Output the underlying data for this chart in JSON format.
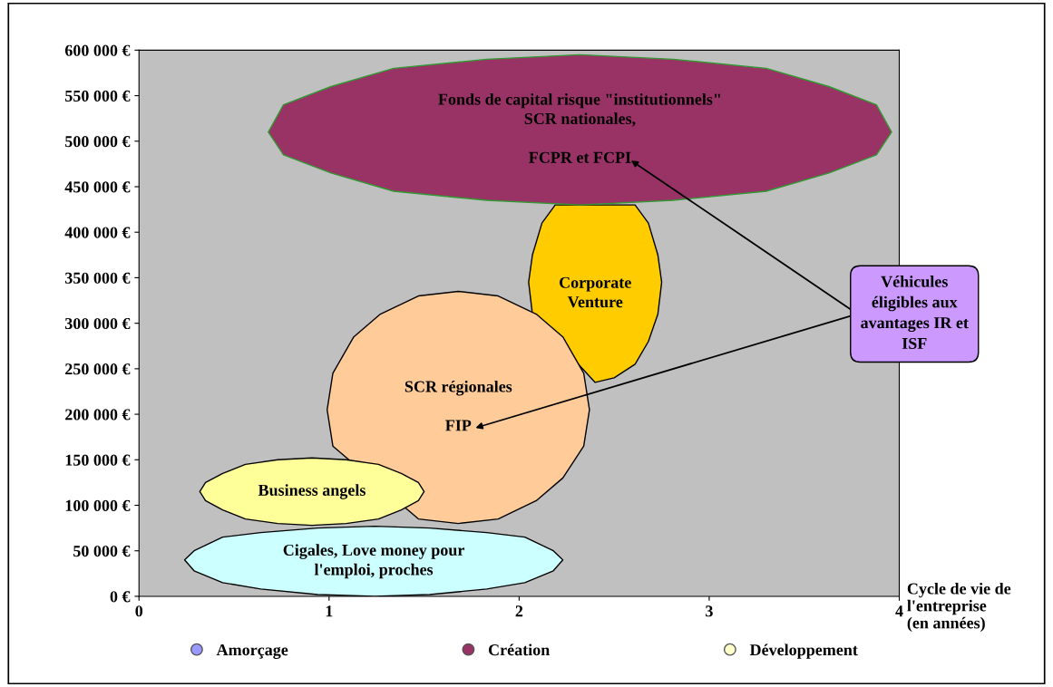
{
  "chart_data": {
    "type": "area",
    "xlabel": "Cycle de vie de\nl'entreprise\n(en années)",
    "xlim": [
      0,
      4
    ],
    "xticks": [
      0,
      1,
      2,
      3,
      4
    ],
    "ylim": [
      0,
      600000
    ],
    "yticks": [
      {
        "value": 0,
        "label": "0 €"
      },
      {
        "value": 50000,
        "label": "50 000 €"
      },
      {
        "value": 100000,
        "label": "100 000 €"
      },
      {
        "value": 150000,
        "label": "150 000 €"
      },
      {
        "value": 200000,
        "label": "200 000 €"
      },
      {
        "value": 250000,
        "label": "250 000 €"
      },
      {
        "value": 300000,
        "label": "300 000 €"
      },
      {
        "value": 350000,
        "label": "350 000 €"
      },
      {
        "value": 400000,
        "label": "400 000 €"
      },
      {
        "value": 450000,
        "label": "450 000 €"
      },
      {
        "value": 500000,
        "label": "500 000 €"
      },
      {
        "value": 550000,
        "label": "550 000 €"
      },
      {
        "value": 600000,
        "label": "600 000 €"
      }
    ],
    "grid": false,
    "legend": "bottom",
    "series": [
      {
        "name": "Corporate\nVenture",
        "color": "#ffcc00",
        "x": [
          2.05,
          2.07,
          2.12,
          2.19,
          2.3,
          2.4,
          2.5,
          2.61,
          2.68,
          2.73,
          2.75,
          2.73,
          2.68,
          2.61,
          2.5,
          2.4,
          2.3,
          2.19,
          2.12,
          2.07
        ],
        "values": [
          345000,
          375000,
          410000,
          430000,
          null,
          null,
          null,
          430000,
          410000,
          375000,
          345000,
          310000,
          280000,
          255000,
          240000,
          235000,
          null,
          null,
          null,
          310000
        ]
      },
      {
        "name": "SCR régionales\n\nFIP",
        "color": "#ffcc99",
        "x": [
          0.99,
          1.02,
          1.13,
          1.27,
          1.47,
          1.68,
          1.89,
          2.09,
          2.23,
          2.34,
          2.37,
          2.34,
          2.23,
          2.09,
          1.89,
          1.68,
          1.47,
          1.27,
          1.13,
          1.02
        ],
        "values": [
          205000,
          245000,
          285000,
          310000,
          330000,
          335000,
          330000,
          310000,
          285000,
          245000,
          205000,
          165000,
          130000,
          105000,
          85000,
          80000,
          85000,
          null,
          null,
          165000
        ]
      },
      {
        "name": "Business angels",
        "color": "#ffff99",
        "x": [
          0.32,
          0.35,
          0.44,
          0.56,
          0.73,
          0.91,
          1.09,
          1.26,
          1.38,
          1.47,
          1.5,
          1.47,
          1.38,
          1.26,
          1.09,
          0.91,
          0.73,
          0.56,
          0.44,
          0.35
        ],
        "values": [
          115000,
          125000,
          135000,
          145000,
          150000,
          152000,
          150000,
          145000,
          135000,
          125000,
          115000,
          105000,
          95000,
          85000,
          80000,
          78000,
          80000,
          85000,
          95000,
          105000
        ]
      },
      {
        "name": "Cigales, Love money pour\nl'emploi, proches",
        "color": "#ccffff",
        "x": [
          0.24,
          0.29,
          0.44,
          0.64,
          0.94,
          1.24,
          1.53,
          1.83,
          2.03,
          2.18,
          2.23,
          2.18,
          2.03,
          1.83,
          1.53,
          1.24,
          0.94,
          0.64,
          0.44,
          0.29
        ],
        "values": [
          40000,
          50000,
          65000,
          70000,
          75000,
          77000,
          75000,
          70000,
          65000,
          50000,
          40000,
          28000,
          15000,
          8000,
          2000,
          0,
          2000,
          8000,
          15000,
          28000
        ]
      },
      {
        "name": "Fonds de capital risque \"institutionnels\"\nSCR nationales,\n\nFCPR et FCPI",
        "color": "#993366",
        "x": [
          0.68,
          0.76,
          1.01,
          1.34,
          1.83,
          2.32,
          2.81,
          3.3,
          3.63,
          3.88,
          3.96,
          3.88,
          3.63,
          3.3,
          2.81,
          2.32,
          1.83,
          1.34,
          1.01,
          0.76
        ],
        "values": [
          510000,
          540000,
          560000,
          580000,
          590000,
          595000,
          590000,
          580000,
          560000,
          540000,
          510000,
          485000,
          465000,
          445000,
          435000,
          430000,
          435000,
          445000,
          465000,
          485000
        ]
      },
      {
        "name": "Amorçage",
        "color": "#9999ff",
        "type": "scatter",
        "marker": "circle"
      },
      {
        "name": "Création",
        "color": "#993366",
        "type": "scatter",
        "marker": "circle"
      },
      {
        "name": "Développement",
        "color": "#ffffcc",
        "type": "scatter",
        "marker": "circle"
      }
    ],
    "annotations": [
      "Véhicules\néligibles aux\navantages IR et\nISF"
    ]
  }
}
